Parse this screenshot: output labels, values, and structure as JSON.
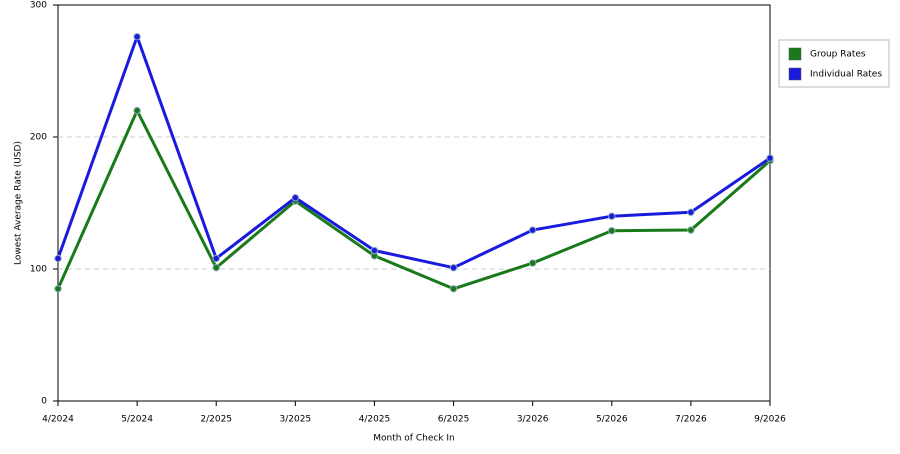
{
  "chart_data": {
    "type": "line",
    "x_label": "Month of Check In",
    "y_label": "Lowest Average Rate (USD)",
    "categories": [
      "4/2024",
      "5/2024",
      "2/2025",
      "3/2025",
      "4/2025",
      "6/2025",
      "3/2026",
      "5/2026",
      "7/2026",
      "9/2026"
    ],
    "series": [
      {
        "name": "Group Rates",
        "color": "#1a7a1a",
        "values": [
          85,
          220,
          101,
          151.5,
          110,
          85,
          104.5,
          129,
          129.5,
          182
        ]
      },
      {
        "name": "Individual Rates",
        "color": "#1a1adf",
        "values": [
          108,
          276,
          108,
          154,
          114,
          101,
          129.5,
          140,
          143,
          184
        ]
      }
    ],
    "ylim": [
      0,
      300
    ],
    "yticks": [
      0,
      100,
      200,
      300
    ],
    "grid": true,
    "legend": "right"
  }
}
